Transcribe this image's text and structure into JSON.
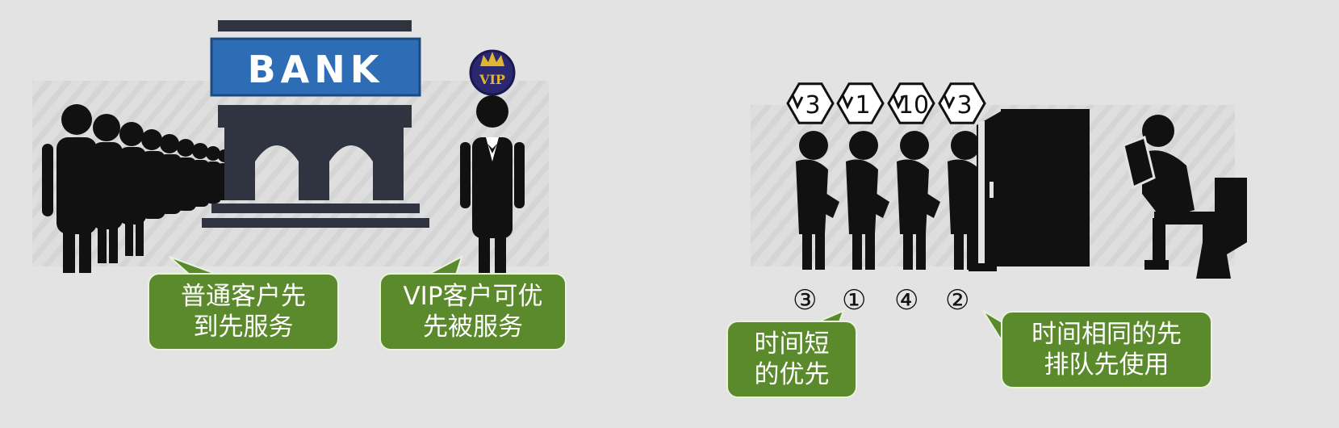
{
  "colors": {
    "background": "#e3e3e3",
    "ink": "#111111",
    "bank_sign": "#2d6db5",
    "bank_body": "#2f3440",
    "callout": "#5b8a2c",
    "vip_badge": "#2b2870",
    "crown": "#e0b531"
  },
  "bank": {
    "sign_text": "BANK",
    "vip_badge_text": "VIP"
  },
  "tickets": [
    "3",
    "1",
    "10",
    "3"
  ],
  "order_marks": [
    "③",
    "①",
    "④",
    "②"
  ],
  "callouts": {
    "normal_first": [
      "普通客户先",
      "到先服务"
    ],
    "vip_first": [
      "VIP客户可优",
      "先被服务"
    ],
    "shortest_first": [
      "时间短",
      "的优先"
    ],
    "same_time_first": [
      "时间相同的先",
      "排队先使用"
    ]
  }
}
